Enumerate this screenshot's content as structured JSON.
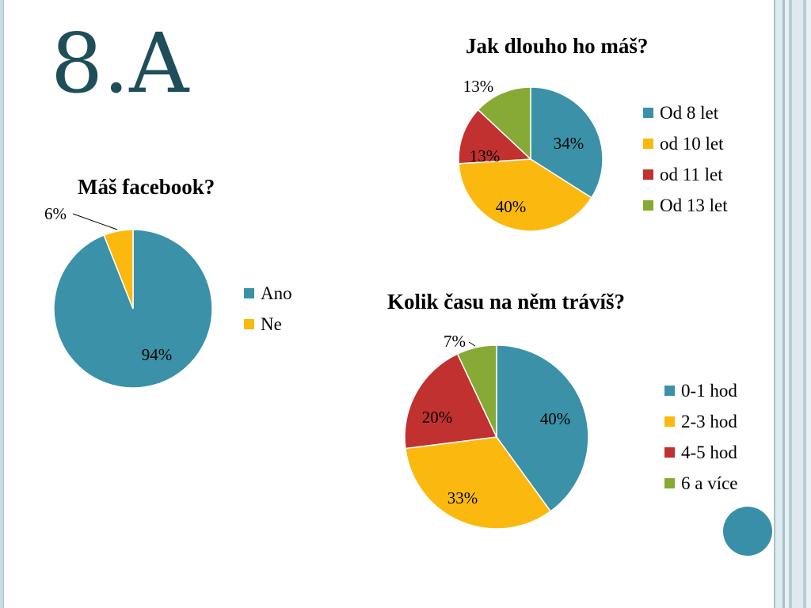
{
  "slide": {
    "title": "8.A"
  },
  "colors": {
    "teal": "#3a91a8",
    "gold": "#fbb910",
    "red": "#c1312f",
    "green": "#87a935",
    "title": "#1f4e5b",
    "circle": "#3a8fa8"
  },
  "chart_data": [
    {
      "id": "facebook",
      "type": "pie",
      "title": "Máš facebook?",
      "categories": [
        "Ano",
        "Ne"
      ],
      "values": [
        94,
        6
      ],
      "labels": [
        "94%",
        "6%"
      ],
      "colors": [
        "#3a91a8",
        "#fbb910"
      ],
      "legend": "right"
    },
    {
      "id": "duration",
      "type": "pie",
      "title": "Jak dlouho ho máš?",
      "categories": [
        "Od 8 let",
        "od 10 let",
        "od 11 let",
        "Od 13 let"
      ],
      "values": [
        34,
        40,
        13,
        13
      ],
      "labels": [
        "34%",
        "40%",
        "13%",
        "13%"
      ],
      "colors": [
        "#3a91a8",
        "#fbb910",
        "#c1312f",
        "#87a935"
      ],
      "legend": "right"
    },
    {
      "id": "time",
      "type": "pie",
      "title": "Kolik času na něm trávíš?",
      "categories": [
        "0-1 hod",
        "2-3 hod",
        "4-5 hod",
        "6 a více"
      ],
      "values": [
        40,
        33,
        20,
        7
      ],
      "labels": [
        "40%",
        "33%",
        "20%",
        "7%"
      ],
      "colors": [
        "#3a91a8",
        "#fbb910",
        "#c1312f",
        "#87a935"
      ],
      "legend": "right"
    }
  ]
}
